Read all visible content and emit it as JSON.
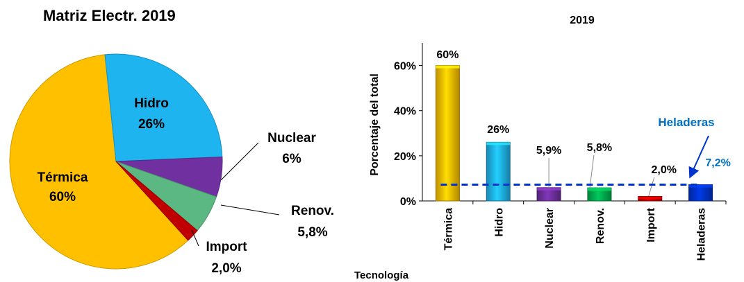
{
  "chart_data": [
    {
      "type": "pie",
      "title": "Matriz Electr. 2019",
      "slices": [
        {
          "label": "Térmica",
          "value": 60.2,
          "value_label": "60%",
          "color": "#ffc000"
        },
        {
          "label": "Hidro",
          "value": 26.0,
          "value_label": "26%",
          "color": "#1eb4f0"
        },
        {
          "label": "Nuclear",
          "value": 6.0,
          "value_label": "6%",
          "color": "#7030a0"
        },
        {
          "label": "Renov.",
          "value": 5.8,
          "value_label": "5,8%",
          "color": "#5cb882"
        },
        {
          "label": "Import",
          "value": 2.0,
          "value_label": "2,0%",
          "color": "#c00000"
        }
      ]
    },
    {
      "type": "bar",
      "title": "2019",
      "xlabel": "Tecnología",
      "ylabel": "Porcentaje del total",
      "ylim": [
        0,
        70
      ],
      "yticks": [
        0,
        20,
        40,
        60
      ],
      "ytick_labels": [
        "0%",
        "20%",
        "40%",
        "60%"
      ],
      "categories": [
        "Térmica",
        "Hidro",
        "Nuclear",
        "Renov.",
        "Import",
        "Heladeras"
      ],
      "values": [
        60,
        26,
        5.9,
        5.8,
        2.0,
        7.2
      ],
      "value_labels": [
        "60%",
        "26%",
        "5,9%",
        "5,8%",
        "2,0%",
        "7,2%"
      ],
      "colors": [
        "#ffc000",
        "#1eb4f0",
        "#7030a0",
        "#00b050",
        "#c00000",
        "#0033cc"
      ],
      "annotation": {
        "text": "Heladeras",
        "value": 7.2,
        "line_color": "#0033cc",
        "label_color": "#0070c0"
      }
    }
  ]
}
